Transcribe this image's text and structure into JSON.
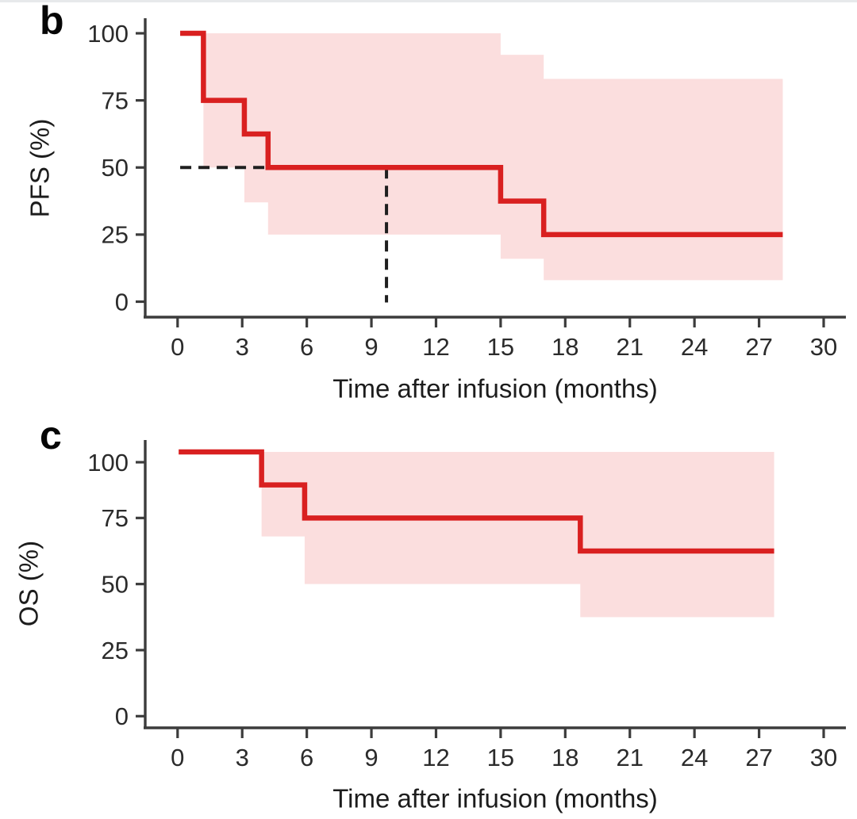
{
  "page": {
    "background": "#ffffff",
    "top_border_color": "#e7e9eb"
  },
  "chart_data": [
    {
      "type": "line",
      "subtype": "kaplan-meier-step",
      "panel_label": "b",
      "ylabel": "PFS (%)",
      "xlabel": "Time after infusion (months)",
      "x_ticks": [
        0,
        3,
        6,
        9,
        12,
        15,
        18,
        21,
        24,
        27,
        30
      ],
      "y_ticks": [
        100,
        75,
        50,
        25,
        0
      ],
      "xlim": [
        0,
        30
      ],
      "ylim": [
        0,
        100
      ],
      "grid": false,
      "legend": "none",
      "curve_color": "#d92020",
      "ci_color": "#fbdede",
      "median_color": "#1f1f1f",
      "steps": [
        {
          "t": 0.12,
          "s": 100
        },
        {
          "t": 1.2,
          "s": 75
        },
        {
          "t": 3.1,
          "s": 62.5
        },
        {
          "t": 4.2,
          "s": 50
        },
        {
          "t": 15.0,
          "s": 37.5
        },
        {
          "t": 17.0,
          "s": 25
        }
      ],
      "end_time": 28.1,
      "ci_upper": [
        {
          "t": 1.2,
          "s": 100
        },
        {
          "t": 15.0,
          "s": 92
        },
        {
          "t": 17.0,
          "s": 83
        }
      ],
      "ci_lower": [
        {
          "t": 1.2,
          "s": 50
        },
        {
          "t": 3.1,
          "s": 37
        },
        {
          "t": 4.2,
          "s": 25
        },
        {
          "t": 15.0,
          "s": 16
        },
        {
          "t": 17.0,
          "s": 8
        }
      ],
      "median": {
        "time": 9.7,
        "survival": 50
      }
    },
    {
      "type": "line",
      "subtype": "kaplan-meier-step",
      "panel_label": "c",
      "ylabel": "OS (%)",
      "xlabel": "Time after infusion (months)",
      "x_ticks": [
        0,
        3,
        6,
        9,
        12,
        15,
        18,
        21,
        24,
        27,
        30
      ],
      "y_ticks": [
        100,
        75,
        50,
        25,
        0
      ],
      "xlim": [
        0,
        30
      ],
      "ylim": [
        0,
        100
      ],
      "grid": false,
      "legend": "none",
      "curve_color": "#d92020",
      "ci_color": "#fbdede",
      "median_color": "#1f1f1f",
      "steps": [
        {
          "t": 0.05,
          "s": 100
        },
        {
          "t": 3.9,
          "s": 87.5
        },
        {
          "t": 5.9,
          "s": 75
        },
        {
          "t": 18.7,
          "s": 62.5
        }
      ],
      "end_time": 27.7,
      "ci_upper": [
        {
          "t": 3.9,
          "s": 100
        }
      ],
      "ci_lower": [
        {
          "t": 3.9,
          "s": 68
        },
        {
          "t": 5.9,
          "s": 50
        },
        {
          "t": 18.7,
          "s": 37.5
        }
      ],
      "median": null
    }
  ]
}
